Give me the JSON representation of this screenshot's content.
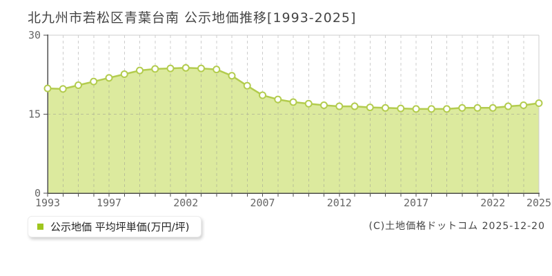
{
  "title": "北九州市若松区青葉台南 公示地価推移[1993-2025]",
  "legend": {
    "label": "公示地価 平均坪単価(万円/坪)"
  },
  "copyright": "(C)土地価格ドットコム 2025-12-20",
  "chart_data": {
    "type": "area",
    "title": "北九州市若松区青葉台南 公示地価推移[1993-2025]",
    "series_name": "公示地価 平均坪単価(万円/坪)",
    "unit": "万円/坪",
    "x": [
      1993,
      1994,
      1995,
      1996,
      1997,
      1998,
      1999,
      2000,
      2001,
      2002,
      2003,
      2004,
      2005,
      2006,
      2007,
      2008,
      2009,
      2010,
      2011,
      2012,
      2013,
      2014,
      2015,
      2016,
      2017,
      2018,
      2019,
      2020,
      2021,
      2022,
      2023,
      2024,
      2025
    ],
    "values": [
      19.9,
      19.8,
      20.5,
      21.2,
      21.9,
      22.6,
      23.3,
      23.6,
      23.7,
      23.8,
      23.7,
      23.5,
      22.3,
      20.4,
      18.6,
      17.8,
      17.3,
      17.0,
      16.7,
      16.5,
      16.5,
      16.3,
      16.2,
      16.1,
      16.0,
      16.0,
      16.0,
      16.2,
      16.2,
      16.2,
      16.5,
      16.7,
      17.1
    ],
    "ylim": [
      0,
      30
    ],
    "y_ticks": [
      0,
      15,
      30
    ],
    "x_tick_years": [
      1993,
      1997,
      2002,
      2007,
      2012,
      2017,
      2022,
      2025
    ],
    "grid": "vertical dashed line per year, horizontal dashed line at 15",
    "legend_position": "bottom-left",
    "colors": {
      "line": "#b3cc4e",
      "fill": "#dcea9e",
      "marker_fill": "#ffffff",
      "legend_swatch": "#9fc61e",
      "grid": "#8f8f8f",
      "axis": "#4d4d4d",
      "border": "#cccccc",
      "tick_label": "#666666"
    }
  }
}
